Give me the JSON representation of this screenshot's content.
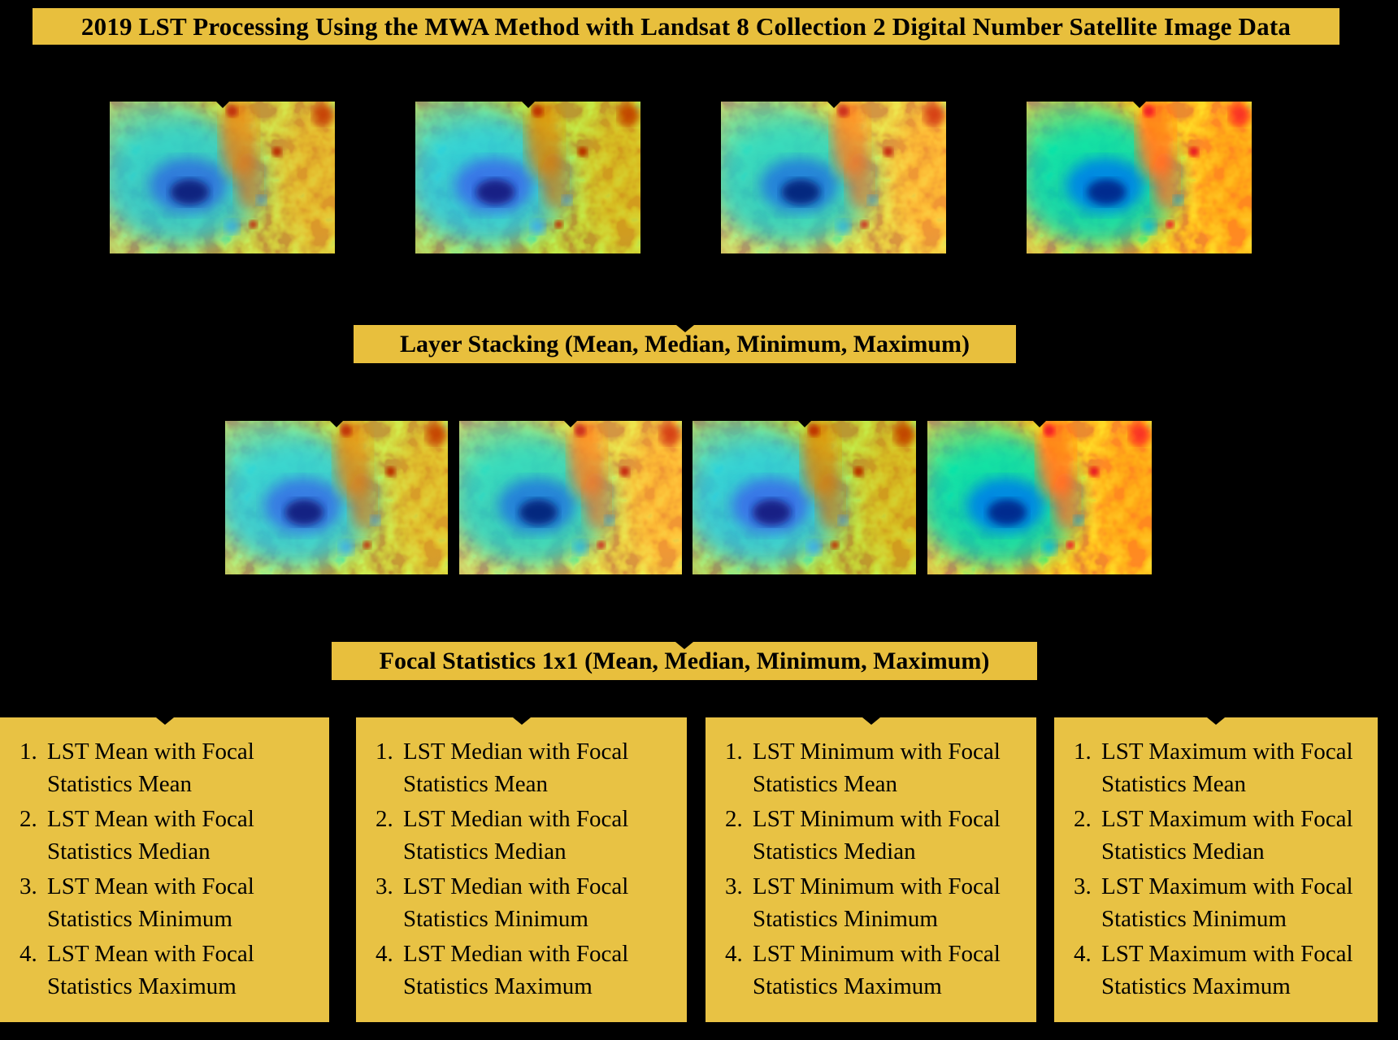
{
  "title": "2019 LST Processing Using the MWA Method with Landsat 8 Collection 2 Digital Number Satellite Image Data",
  "stage_banners": {
    "layer_stacking": "Layer Stacking (Mean, Median, Minimum, Maximum)",
    "focal_statistics": "Focal Statistics 1x1 (Mean, Median, Minimum, Maximum)"
  },
  "colors": {
    "background": "#000000",
    "banner_fill": "#E8BF3D",
    "box_fill": "#E8C244",
    "text": "#000000"
  },
  "images": {
    "row1_count": 4,
    "row2_count": 4,
    "alt": "LST thermal satellite image (rainbow colormap, blue volcano at left-center, orange-red warm band at right)"
  },
  "result_boxes": [
    {
      "items": [
        "LST Mean with Focal Statistics Mean",
        "LST Mean with Focal Statistics Median",
        "LST Mean with Focal Statistics Minimum",
        "LST Mean with Focal Statistics Maximum"
      ]
    },
    {
      "items": [
        "LST Median with Focal Statistics Mean",
        "LST Median with Focal Statistics Median",
        "LST Median with Focal Statistics Minimum",
        "LST Median with Focal Statistics Maximum"
      ]
    },
    {
      "items": [
        "LST Minimum with Focal Statistics Mean",
        "LST Minimum with Focal Statistics Median",
        "LST Minimum with Focal Statistics Minimum",
        "LST Minimum with Focal Statistics Maximum"
      ]
    },
    {
      "items": [
        "LST Maximum with Focal Statistics Mean",
        "LST Maximum with Focal Statistics Median",
        "LST Maximum with Focal Statistics Minimum",
        "LST Maximum with Focal Statistics Maximum"
      ]
    }
  ]
}
